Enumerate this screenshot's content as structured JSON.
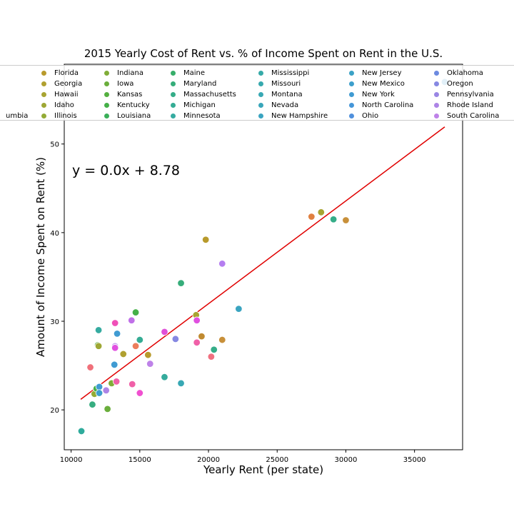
{
  "chart_data": {
    "type": "scatter",
    "title": "2015 Yearly Cost of Rent vs. % of Income Spent on Rent in the U.S.",
    "xlabel": "Yearly Rent (per state)",
    "ylabel": "Amount of Income Spent on Rent (%)",
    "xlim": [
      9500,
      38500
    ],
    "ylim": [
      15.5,
      59
    ],
    "xticks": [
      10000,
      15000,
      20000,
      25000,
      30000,
      35000
    ],
    "yticks": [
      20,
      30,
      40,
      50
    ],
    "grid": false,
    "legend_position": "top",
    "annotation": "y = 0.0x + 8.78",
    "regression": {
      "slope": 0.00116,
      "intercept": 8.78,
      "x_range": [
        10700,
        37200
      ],
      "color": "#e00000"
    },
    "legend": [
      {
        "name": "umbia",
        "color": "#ec6e3c"
      },
      {
        "name": "Florida",
        "color": "#b89a2c"
      },
      {
        "name": "Georgia",
        "color": "#b0a030"
      },
      {
        "name": "Hawaii",
        "color": "#a8a432"
      },
      {
        "name": "Idaho",
        "color": "#9ea734"
      },
      {
        "name": "Illinois",
        "color": "#93ab35"
      },
      {
        "name": "Indiana",
        "color": "#80ad38"
      },
      {
        "name": "Iowa",
        "color": "#6aae3c"
      },
      {
        "name": "Kansas",
        "color": "#55b040"
      },
      {
        "name": "Kentucky",
        "color": "#45b048"
      },
      {
        "name": "Louisiana",
        "color": "#3aaf58"
      },
      {
        "name": "Maine",
        "color": "#37ae6a"
      },
      {
        "name": "Maryland",
        "color": "#36ad7a"
      },
      {
        "name": "Massachusetts",
        "color": "#35ad88"
      },
      {
        "name": "Michigan",
        "color": "#35ac94"
      },
      {
        "name": "Minnesota",
        "color": "#35aba0"
      },
      {
        "name": "Mississippi",
        "color": "#36aaa8"
      },
      {
        "name": "Missouri",
        "color": "#37a9ae"
      },
      {
        "name": "Montana",
        "color": "#38a8b4"
      },
      {
        "name": "Nevada",
        "color": "#39a6ba"
      },
      {
        "name": "New Hampshire",
        "color": "#3aa4c0"
      },
      {
        "name": "New Jersey",
        "color": "#3ba2c6"
      },
      {
        "name": "New Mexico",
        "color": "#3d9fcc"
      },
      {
        "name": "New York",
        "color": "#409bd2"
      },
      {
        "name": "North Carolina",
        "color": "#4596d8"
      },
      {
        "name": "Ohio",
        "color": "#5090dc"
      },
      {
        "name": "Oklahoma",
        "color": "#6c8ae0"
      },
      {
        "name": "Oregon",
        "color": "#8688e2"
      },
      {
        "name": "Pennsylvania",
        "color": "#9a86e4"
      },
      {
        "name": "Rhode Island",
        "color": "#ad84e6"
      },
      {
        "name": "South Carolina",
        "color": "#be82e8"
      }
    ],
    "points": [
      {
        "x": 10750,
        "y": 17.6,
        "color": "#2fab9c"
      },
      {
        "x": 11400,
        "y": 24.8,
        "color": "#f0707a"
      },
      {
        "x": 11550,
        "y": 20.6,
        "color": "#36ad80"
      },
      {
        "x": 11700,
        "y": 21.8,
        "color": "#93ab35"
      },
      {
        "x": 11850,
        "y": 22.4,
        "color": "#45b048"
      },
      {
        "x": 11950,
        "y": 27.3,
        "color": "#55b040"
      },
      {
        "x": 12000,
        "y": 27.2,
        "color": "#9ea734"
      },
      {
        "x": 12000,
        "y": 29.0,
        "color": "#35aba0"
      },
      {
        "x": 12050,
        "y": 22.6,
        "color": "#409bd2"
      },
      {
        "x": 12050,
        "y": 21.9,
        "color": "#3d9fcc"
      },
      {
        "x": 12550,
        "y": 22.2,
        "color": "#ad84e6"
      },
      {
        "x": 12650,
        "y": 20.1,
        "color": "#6aae3c"
      },
      {
        "x": 12950,
        "y": 23.0,
        "color": "#80ad38"
      },
      {
        "x": 13150,
        "y": 25.1,
        "color": "#409bd2"
      },
      {
        "x": 13200,
        "y": 29.8,
        "color": "#f050b8"
      },
      {
        "x": 13200,
        "y": 27.2,
        "color": "#cba6f0"
      },
      {
        "x": 13200,
        "y": 27.0,
        "color": "#e050e0"
      },
      {
        "x": 13300,
        "y": 23.2,
        "color": "#f060a8"
      },
      {
        "x": 13350,
        "y": 28.6,
        "color": "#409bd2"
      },
      {
        "x": 13800,
        "y": 26.3,
        "color": "#b0a030"
      },
      {
        "x": 14400,
        "y": 30.1,
        "color": "#c070e8"
      },
      {
        "x": 14450,
        "y": 22.9,
        "color": "#f060a8"
      },
      {
        "x": 14700,
        "y": 31.0,
        "color": "#45b048"
      },
      {
        "x": 14700,
        "y": 27.2,
        "color": "#ec7e5c"
      },
      {
        "x": 15000,
        "y": 27.9,
        "color": "#35ac94"
      },
      {
        "x": 15000,
        "y": 21.9,
        "color": "#f050d0"
      },
      {
        "x": 15600,
        "y": 26.2,
        "color": "#b89a2c"
      },
      {
        "x": 15750,
        "y": 25.2,
        "color": "#be82e8"
      },
      {
        "x": 16800,
        "y": 23.7,
        "color": "#35ab9c"
      },
      {
        "x": 16800,
        "y": 28.8,
        "color": "#e050d8"
      },
      {
        "x": 17600,
        "y": 28.0,
        "color": "#8688e2"
      },
      {
        "x": 18000,
        "y": 34.3,
        "color": "#36ad7a"
      },
      {
        "x": 18000,
        "y": 23.0,
        "color": "#38a8b4"
      },
      {
        "x": 19100,
        "y": 30.7,
        "color": "#a8a432"
      },
      {
        "x": 19150,
        "y": 30.1,
        "color": "#e050e0"
      },
      {
        "x": 19150,
        "y": 27.6,
        "color": "#f060a8"
      },
      {
        "x": 19500,
        "y": 28.3,
        "color": "#c08a30"
      },
      {
        "x": 19800,
        "y": 39.2,
        "color": "#b89a2c"
      },
      {
        "x": 20200,
        "y": 26.0,
        "color": "#f07080"
      },
      {
        "x": 20400,
        "y": 26.8,
        "color": "#35ad88"
      },
      {
        "x": 21000,
        "y": 36.5,
        "color": "#b57ef0"
      },
      {
        "x": 21000,
        "y": 27.9,
        "color": "#c8903a"
      },
      {
        "x": 22200,
        "y": 31.4,
        "color": "#3aa4c0"
      },
      {
        "x": 27500,
        "y": 41.8,
        "color": "#e08040"
      },
      {
        "x": 28200,
        "y": 42.3,
        "color": "#a8a432"
      },
      {
        "x": 29100,
        "y": 41.5,
        "color": "#35ad88"
      },
      {
        "x": 30000,
        "y": 41.4,
        "color": "#c8903a"
      },
      {
        "x": 37200,
        "y": 57.0,
        "color": "#409bd2"
      }
    ]
  }
}
